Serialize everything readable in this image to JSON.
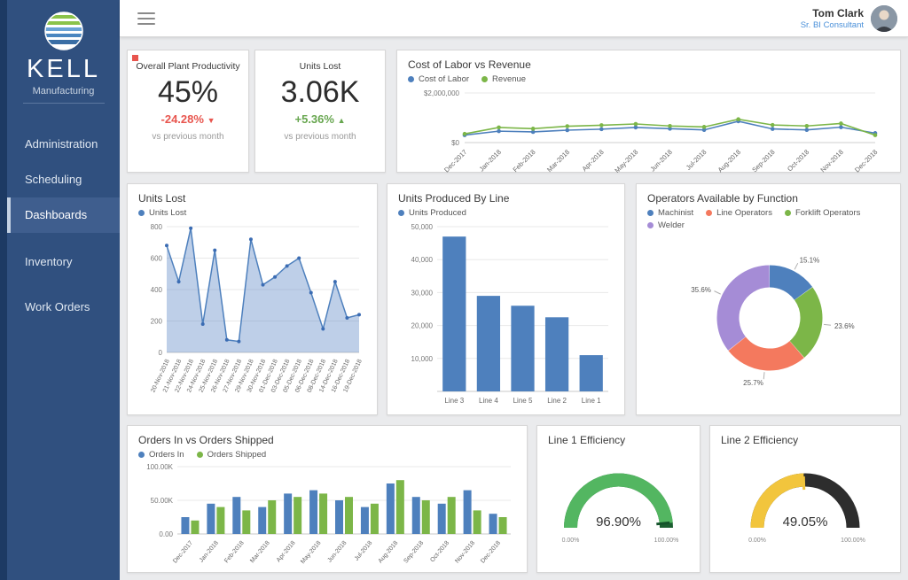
{
  "sidebar": {
    "logo_title": "KELL",
    "logo_subtitle": "Manufacturing",
    "items": [
      {
        "label": "Administration",
        "active": false
      },
      {
        "label": "Scheduling",
        "active": false
      },
      {
        "label": "Dashboards",
        "active": true
      },
      {
        "label": "Inventory",
        "active": false
      },
      {
        "label": "Work Orders",
        "active": false
      }
    ]
  },
  "header": {
    "user_name": "Tom Clark",
    "user_role": "Sr. BI Consultant"
  },
  "colors": {
    "negative": "#e8554e",
    "positive": "#67a64f",
    "accent_blue": "#4e80bd",
    "accent_green": "#7cb648"
  },
  "kpis": [
    {
      "title": "Overall Plant Productivity",
      "value": "45%",
      "delta": "-24.28%",
      "arrow": "▼",
      "trend": "down",
      "caption": "vs previous month"
    },
    {
      "title": "Units Lost",
      "value": "3.06K",
      "delta": "+5.36%",
      "arrow": "▲",
      "trend": "up",
      "caption": "vs previous month"
    }
  ],
  "chart_data": [
    {
      "id": "labor-vs-revenue",
      "type": "line",
      "title": "Cost of Labor vs Revenue",
      "categories": [
        "Dec-2017",
        "Jan-2018",
        "Feb-2018",
        "Mar-2018",
        "Apr-2018",
        "May-2018",
        "Jun-2018",
        "Jul-2018",
        "Aug-2018",
        "Sep-2018",
        "Oct-2018",
        "Nov-2018",
        "Dec-2018"
      ],
      "series": [
        {
          "name": "Cost of Labor",
          "color": "#4e80bd",
          "values": [
            300000,
            460000,
            430000,
            500000,
            540000,
            610000,
            560000,
            510000,
            860000,
            550000,
            510000,
            620000,
            380000
          ]
        },
        {
          "name": "Revenue",
          "color": "#7cb648",
          "values": [
            350000,
            610000,
            560000,
            660000,
            700000,
            750000,
            670000,
            630000,
            940000,
            710000,
            670000,
            770000,
            300000
          ]
        }
      ],
      "ylim": [
        0,
        2000000
      ],
      "yticks": [
        0,
        2000000
      ],
      "ytick_labels": [
        "$0",
        "$2,000,000"
      ],
      "legend_position": "top-left"
    },
    {
      "id": "units-lost-daily",
      "type": "area",
      "title": "Units Lost",
      "categories": [
        "20-Nov-2018",
        "21-Nov-2018",
        "22-Nov-2018",
        "24-Nov-2018",
        "25-Nov-2018",
        "26-Nov-2018",
        "27-Nov-2018",
        "29-Nov-2018",
        "30-Nov-2018",
        "01-Dec-2018",
        "03-Dec-2018",
        "05-Dec-2018",
        "06-Dec-2018",
        "08-Dec-2018",
        "14-Dec-2018",
        "16-Dec-2018",
        "19-Dec-2018"
      ],
      "series": [
        {
          "name": "Units Lost",
          "color": "#4e80bd",
          "fill": "rgba(110,148,205,0.45)",
          "values": [
            680,
            450,
            790,
            180,
            650,
            80,
            70,
            720,
            430,
            480,
            550,
            600,
            380,
            150,
            450,
            220,
            240
          ]
        }
      ],
      "ylim": [
        0,
        800
      ],
      "yticks": [
        0,
        200,
        400,
        600,
        800
      ],
      "ytick_labels": [
        "0",
        "200",
        "400",
        "600",
        "800"
      ],
      "legend_position": "top-left"
    },
    {
      "id": "units-produced-by-line",
      "type": "bar",
      "title": "Units Produced By Line",
      "categories": [
        "Line 3",
        "Line 4",
        "Line 5",
        "Line 2",
        "Line 1"
      ],
      "series": [
        {
          "name": "Units Produced",
          "color": "#4e80bd",
          "values": [
            47000,
            29000,
            26000,
            22500,
            11000
          ]
        }
      ],
      "ylim": [
        0,
        50000
      ],
      "yticks": [
        0,
        10000,
        20000,
        30000,
        40000,
        50000
      ],
      "ytick_labels": [
        "",
        "10,000",
        "20,000",
        "30,000",
        "40,000",
        "50,000"
      ],
      "legend_position": "top-left"
    },
    {
      "id": "operators-by-function",
      "type": "donut",
      "title": "Operators Available by Function",
      "slices": [
        {
          "label": "Machinist",
          "value": 15.1,
          "color": "#4e80bd"
        },
        {
          "label": "Line Operators",
          "value": 25.7,
          "color": "#f4795e"
        },
        {
          "label": "Forklift Operators",
          "value": 23.6,
          "color": "#7cb648"
        },
        {
          "label": "Welder",
          "value": 35.6,
          "color": "#a58cd6"
        }
      ],
      "draw_order": [
        0,
        2,
        1,
        3
      ],
      "slice_labels": [
        "15.1%",
        "25.7%",
        "23.6%",
        "35.6%"
      ],
      "legend_position": "top-left"
    },
    {
      "id": "orders-in-vs-shipped",
      "type": "grouped_bar",
      "title": "Orders In vs Orders Shipped",
      "categories": [
        "Dec-2017",
        "Jan-2018",
        "Feb-2018",
        "Mar-2018",
        "Apr-2018",
        "May-2018",
        "Jun-2018",
        "Jul-2018",
        "Aug-2018",
        "Sep-2018",
        "Oct-2018",
        "Nov-2018",
        "Dec-2018"
      ],
      "series": [
        {
          "name": "Orders In",
          "color": "#4e80bd",
          "values": [
            25000,
            45000,
            55000,
            40000,
            60000,
            65000,
            50000,
            40000,
            75000,
            55000,
            45000,
            65000,
            30000
          ]
        },
        {
          "name": "Orders Shipped",
          "color": "#7cb648",
          "values": [
            20000,
            40000,
            35000,
            50000,
            55000,
            60000,
            55000,
            45000,
            80000,
            50000,
            55000,
            35000,
            25000
          ]
        }
      ],
      "ylim": [
        0,
        100000
      ],
      "yticks": [
        0,
        50000,
        100000
      ],
      "ytick_labels": [
        "0.00",
        "50.00K",
        "100.00K"
      ],
      "legend_position": "top-left"
    },
    {
      "id": "line1-efficiency",
      "type": "gauge",
      "title": "Line 1 Efficiency",
      "value": 96.9,
      "display": "96.90%",
      "min_label": "0.00%",
      "max_label": "100.00%",
      "value_color": "#53b661",
      "rest_color": "#1b5e30",
      "marker_color": "#14532a"
    },
    {
      "id": "line2-efficiency",
      "type": "gauge",
      "title": "Line 2 Efficiency",
      "value": 49.05,
      "display": "49.05%",
      "min_label": "0.00%",
      "max_label": "100.00%",
      "value_color": "#f2c53d",
      "rest_color": "#2d2d2d",
      "marker_color": "#f2c53d"
    }
  ]
}
